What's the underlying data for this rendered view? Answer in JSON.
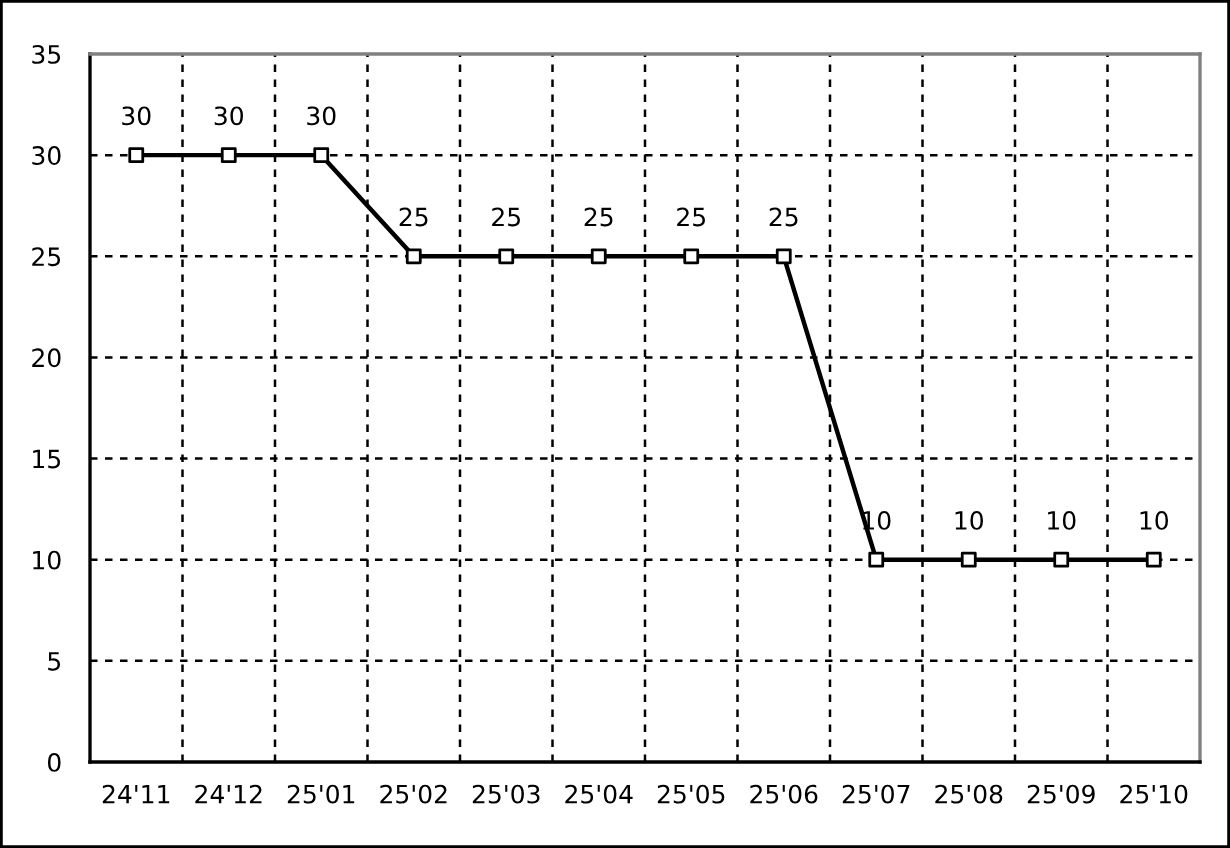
{
  "chart_data": {
    "type": "line",
    "categories": [
      "24'11",
      "24'12",
      "25'01",
      "25'02",
      "25'03",
      "25'04",
      "25'05",
      "25'06",
      "25'07",
      "25'08",
      "25'09",
      "25'10"
    ],
    "series": [
      {
        "color": "#000000",
        "values": [
          30,
          30,
          30,
          25,
          25,
          25,
          25,
          25,
          10,
          10,
          10,
          10
        ]
      }
    ],
    "ylim": [
      0,
      35
    ],
    "yticks": [
      0,
      5,
      10,
      15,
      20,
      25,
      30,
      35
    ],
    "grid": true,
    "marker": "square",
    "line_style": "solid",
    "data_labels": true
  }
}
